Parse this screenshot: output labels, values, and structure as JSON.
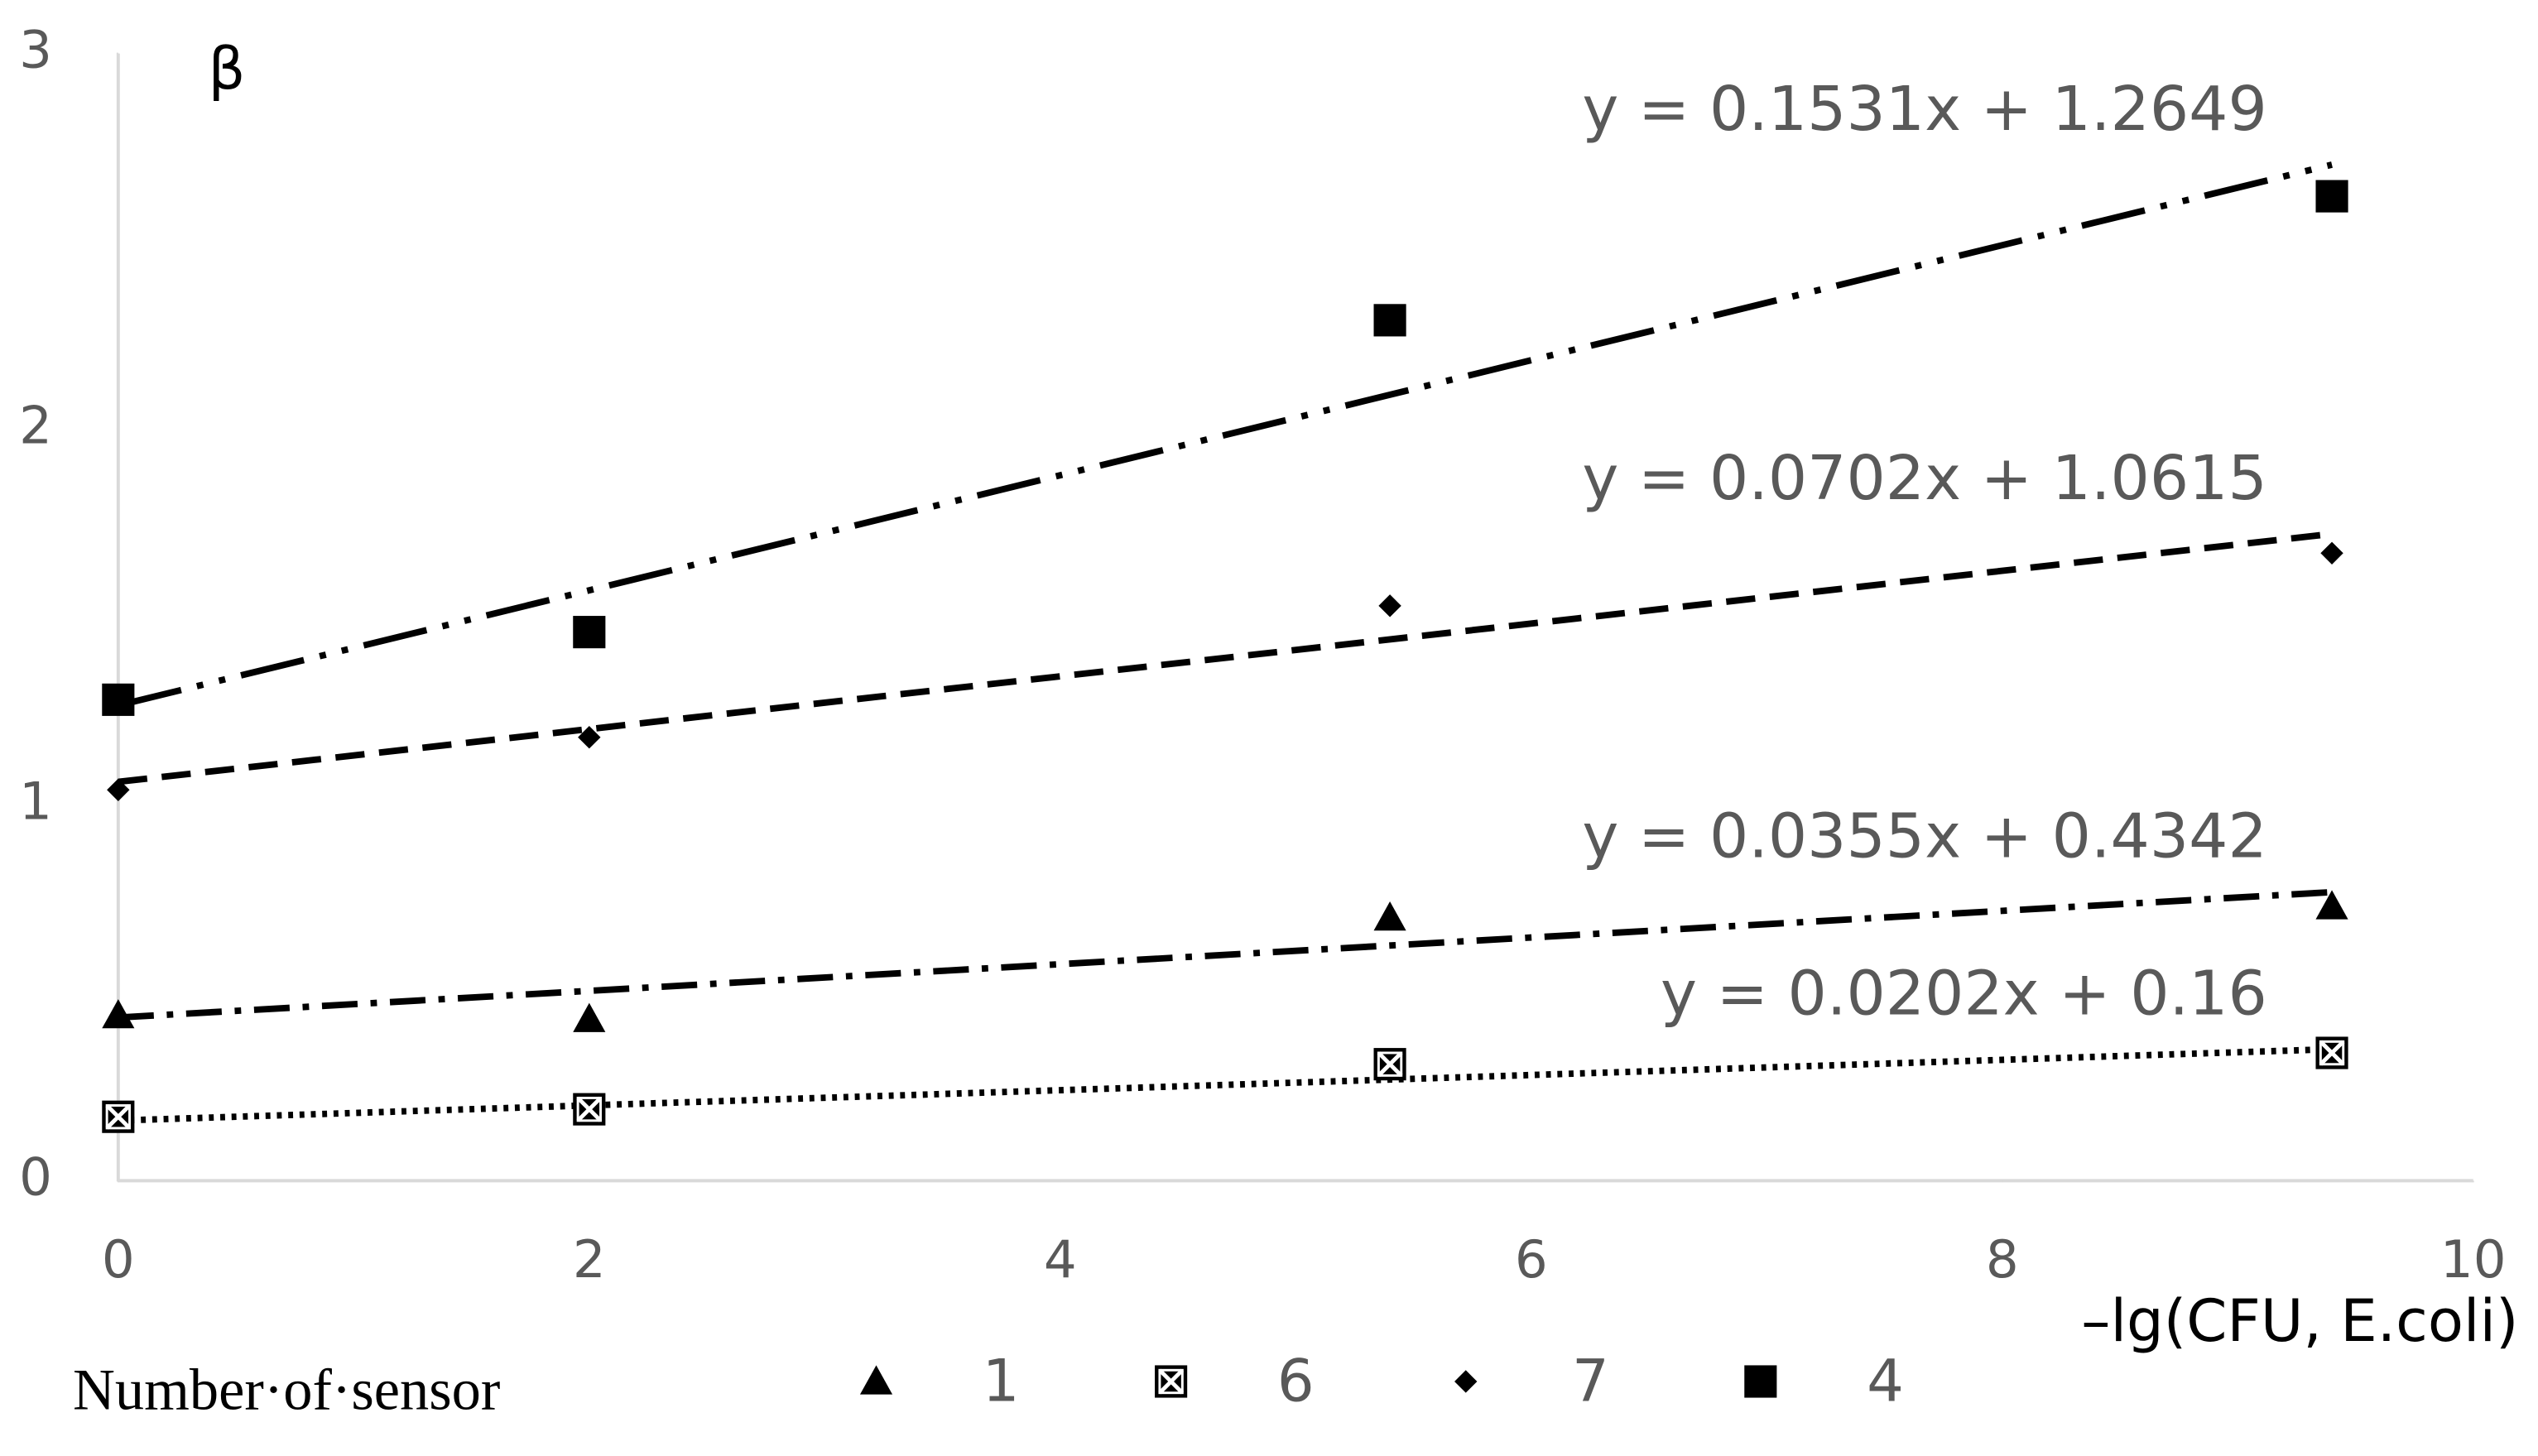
{
  "chart_data": {
    "type": "scatter",
    "x_label": "–lg(CFU, E.coli)",
    "y_label": "β",
    "x": [
      0,
      2,
      5.4,
      9.4
    ],
    "xlim": [
      0,
      10
    ],
    "xticks": [
      0,
      2,
      4,
      6,
      8,
      10
    ],
    "ylim": [
      0,
      3
    ],
    "yticks": [
      0,
      1,
      2,
      3
    ],
    "grid": false,
    "legend_title": "Number·of·sensor",
    "legend": "bottom",
    "series": [
      {
        "name": "1",
        "color": "#000000",
        "marker": "triangle",
        "values": [
          0.44,
          0.43,
          0.7,
          0.73
        ],
        "trendline": {
          "slope": 0.0355,
          "intercept": 0.4342,
          "label": "y = 0.0355x + 0.4342",
          "style": "dash-dot"
        }
      },
      {
        "name": "6",
        "color": "#000000",
        "marker": "box-x",
        "values": [
          0.17,
          0.19,
          0.31,
          0.34
        ],
        "trendline": {
          "slope": 0.0202,
          "intercept": 0.16,
          "label": "y = 0.0202x + 0.16",
          "style": "dot"
        }
      },
      {
        "name": "7",
        "color": "#000000",
        "marker": "diamond",
        "values": [
          1.04,
          1.18,
          1.53,
          1.67
        ],
        "trendline": {
          "slope": 0.0702,
          "intercept": 1.0615,
          "label": "y = 0.0702x + 1.0615",
          "style": "dash"
        }
      },
      {
        "name": "4",
        "color": "#000000",
        "marker": "square",
        "values": [
          1.28,
          1.46,
          2.29,
          2.62
        ],
        "trendline": {
          "slope": 0.1531,
          "intercept": 1.2649,
          "label": "y = 0.1531x + 1.2649",
          "style": "long-dash-dot-dot"
        }
      }
    ]
  }
}
